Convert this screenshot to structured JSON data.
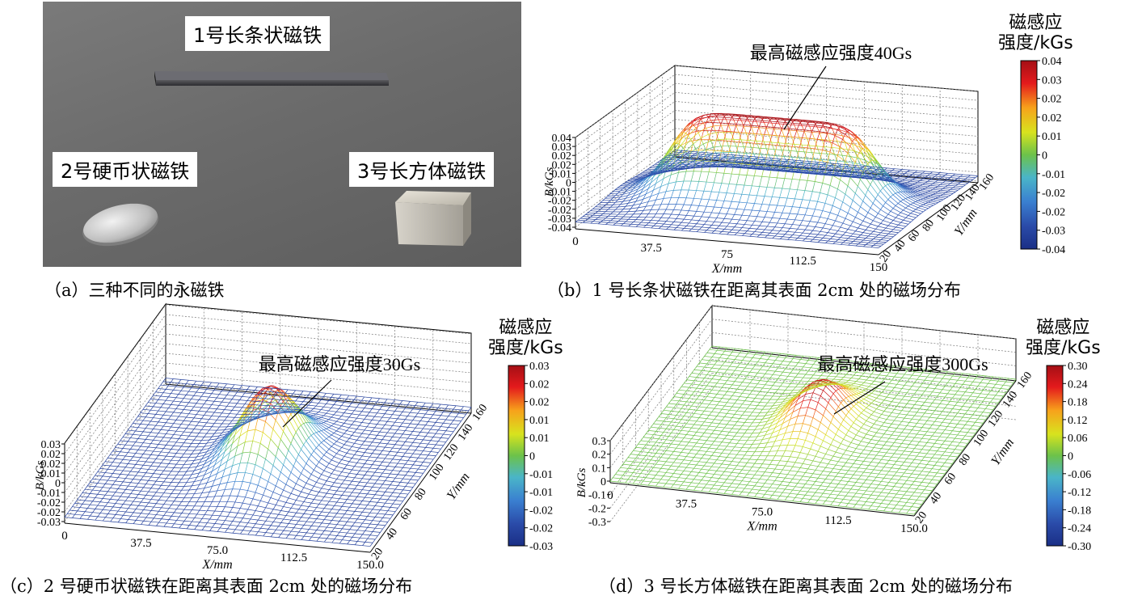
{
  "photo": {
    "labels": [
      "1号长条状磁铁",
      "2号硬币状磁铁",
      "3号长方体磁铁"
    ]
  },
  "captions": {
    "a": "（a）三种不同的永磁铁",
    "b": "（b）1 号长条状磁铁在距离其表面 2cm 处的磁场分布",
    "c": "（c）2 号硬币状磁铁在距离其表面 2cm 处的磁场分布",
    "d": "（d）3 号长方体磁铁在距离其表面 2cm 处的磁场分布"
  },
  "colorbar_title": [
    "磁感应",
    "强度/kGs"
  ],
  "chart_data": [
    {
      "id": "b",
      "type": "surface",
      "annotation": "最高磁感应强度40Gs",
      "xlabel": "X/mm",
      "ylabel": "Y/mm",
      "zlabel": "B/kGs",
      "x_ticks": [
        "0",
        "37.5",
        "75",
        "112.5",
        "150"
      ],
      "y_ticks": [
        "20",
        "40",
        "60",
        "80",
        "100",
        "120",
        "140",
        "160"
      ],
      "z_ticks": [
        "0.04",
        "0.03",
        "0.02",
        "0.02",
        "0.01",
        "0",
        "-0.01",
        "-0.02",
        "-0.02",
        "-0.03",
        "-0.04"
      ],
      "colorbar_ticks": [
        "0.04",
        "0.03",
        "0.02",
        "0.02",
        "0.01",
        "0",
        "-0.01",
        "-0.02",
        "-0.02",
        "-0.03",
        "-0.04"
      ],
      "zlim": [
        -0.04,
        0.04
      ],
      "peak": 0.04,
      "shape": "elongated-bar"
    },
    {
      "id": "c",
      "type": "surface",
      "annotation": "最高磁感应强度30Gs",
      "xlabel": "X/mm",
      "ylabel": "Y/mm",
      "zlabel": "B/kGs",
      "x_ticks": [
        "0",
        "37.5",
        "75.0",
        "112.5",
        "150.0"
      ],
      "y_ticks": [
        "20",
        "40",
        "60",
        "80",
        "100",
        "120",
        "140",
        "160"
      ],
      "z_ticks": [
        "0.03",
        "0.02",
        "0.02",
        "0.01",
        "0",
        "-0.01",
        "-0.02",
        "-0.02",
        "-0.03"
      ],
      "colorbar_ticks": [
        "0.03",
        "0.02",
        "0.02",
        "0.01",
        "0.01",
        "0",
        "-0.01",
        "-0.01",
        "-0.02",
        "-0.02",
        "-0.03"
      ],
      "zlim": [
        -0.03,
        0.03
      ],
      "peak": 0.03,
      "shape": "round-peak"
    },
    {
      "id": "d",
      "type": "surface",
      "annotation": "最高磁感应强度300Gs",
      "xlabel": "X/mm",
      "ylabel": "Y/mm",
      "zlabel": "B/kGs",
      "x_ticks": [
        "0",
        "37.5",
        "75.0",
        "112.5",
        "150.0"
      ],
      "y_ticks": [
        "20",
        "40",
        "60",
        "80",
        "100",
        "120",
        "140",
        "160"
      ],
      "z_ticks": [
        "0.3",
        "0.2",
        "0.1",
        "0",
        "-0.1",
        "-0.2",
        "-0.3"
      ],
      "colorbar_ticks": [
        "0.30",
        "0.24",
        "0.18",
        "0.12",
        "0.06",
        "0",
        "-0.06",
        "-0.12",
        "-0.18",
        "-0.24",
        "-0.30"
      ],
      "zlim": [
        -0.3,
        0.3
      ],
      "peak": 0.3,
      "shape": "round-peak-flat-base"
    }
  ]
}
